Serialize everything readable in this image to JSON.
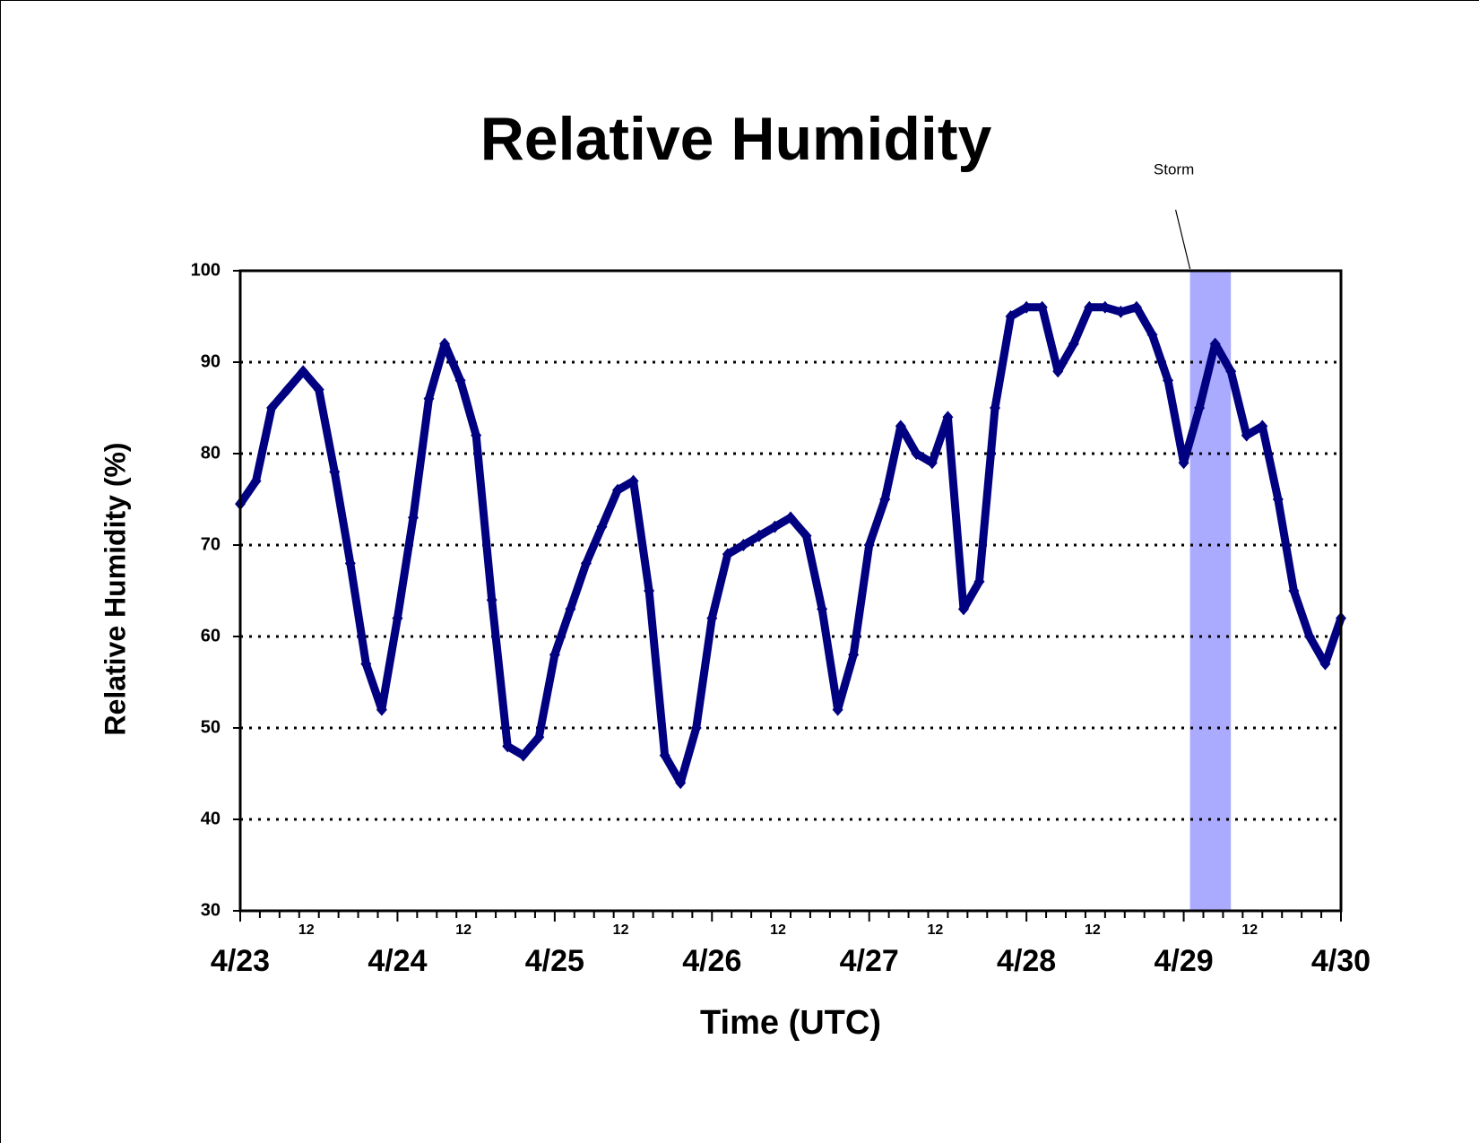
{
  "chart_data": {
    "type": "line",
    "title": "Relative Humidity",
    "xlabel": "Time (UTC)",
    "ylabel": "Relative Humidity (%)",
    "series": [
      {
        "color": "#000080",
        "x": [
          0,
          0.1,
          0.2,
          0.3,
          0.4,
          0.5,
          0.6,
          0.7,
          0.8,
          0.9,
          1.0,
          1.1,
          1.2,
          1.3,
          1.4,
          1.5,
          1.6,
          1.7,
          1.8,
          1.9,
          2.0,
          2.1,
          2.2,
          2.3,
          2.4,
          2.5,
          2.6,
          2.7,
          2.8,
          2.9,
          3.0,
          3.1,
          3.2,
          3.3,
          3.4,
          3.5,
          3.6,
          3.7,
          3.8,
          3.9,
          4.0,
          4.1,
          4.2,
          4.3,
          4.4,
          4.5,
          4.6,
          4.7,
          4.8,
          4.9,
          5.0,
          5.1,
          5.2,
          5.3,
          5.4,
          5.5,
          5.6,
          5.7,
          5.8,
          5.9,
          6.0,
          6.1,
          6.2,
          6.3,
          6.4,
          6.5,
          6.6,
          6.7,
          6.8,
          6.9,
          7.0
        ],
        "values": [
          74.5,
          77,
          85,
          87,
          89,
          87,
          78,
          68,
          57,
          52,
          62,
          73,
          86,
          92,
          88,
          82,
          64,
          48,
          47,
          49,
          58,
          63,
          68,
          72,
          76,
          77,
          65,
          47,
          44,
          50,
          62,
          69,
          70,
          71,
          72,
          73,
          71,
          63,
          52,
          58,
          70,
          75,
          83,
          80,
          79,
          84,
          63,
          66,
          85,
          95,
          96,
          96,
          89,
          92,
          96,
          96,
          95.5,
          96,
          93,
          88,
          79,
          85,
          92,
          89,
          82,
          83,
          75,
          65,
          60,
          57,
          62
        ]
      }
    ],
    "xlim": [
      0,
      7
    ],
    "xticks": [
      {
        "value": 0,
        "label": "4/23"
      },
      {
        "value": 0.5,
        "label": "12"
      },
      {
        "value": 1,
        "label": "4/24"
      },
      {
        "value": 1.5,
        "label": "12"
      },
      {
        "value": 2,
        "label": "4/25"
      },
      {
        "value": 2.5,
        "label": "12"
      },
      {
        "value": 3,
        "label": "4/26"
      },
      {
        "value": 3.5,
        "label": "12"
      },
      {
        "value": 4,
        "label": "4/27"
      },
      {
        "value": 4.5,
        "label": "12"
      },
      {
        "value": 5,
        "label": "4/28"
      },
      {
        "value": 5.5,
        "label": "12"
      },
      {
        "value": 6,
        "label": "4/29"
      },
      {
        "value": 6.5,
        "label": "12"
      },
      {
        "value": 7,
        "label": "4/30"
      }
    ],
    "xminorticks": [
      0.125,
      0.25,
      0.375,
      0.625,
      0.75,
      0.875,
      1.125,
      1.25,
      1.375,
      1.625,
      1.75,
      1.875,
      2.125,
      2.25,
      2.375,
      2.625,
      2.75,
      2.875,
      3.125,
      3.25,
      3.375,
      3.625,
      3.75,
      3.875,
      4.125,
      4.25,
      4.375,
      4.625,
      4.75,
      4.875,
      5.125,
      5.25,
      5.375,
      5.625,
      5.75,
      5.875,
      6.125,
      6.25,
      6.375,
      6.625,
      6.75,
      6.875
    ],
    "ylim": [
      30,
      100
    ],
    "yticks": [
      30,
      40,
      50,
      60,
      70,
      80,
      90,
      100
    ],
    "grid": true,
    "annotations": [
      {
        "text": "Storm",
        "xrange": [
          6.04,
          6.3
        ],
        "color": "#aaaaff"
      }
    ]
  }
}
